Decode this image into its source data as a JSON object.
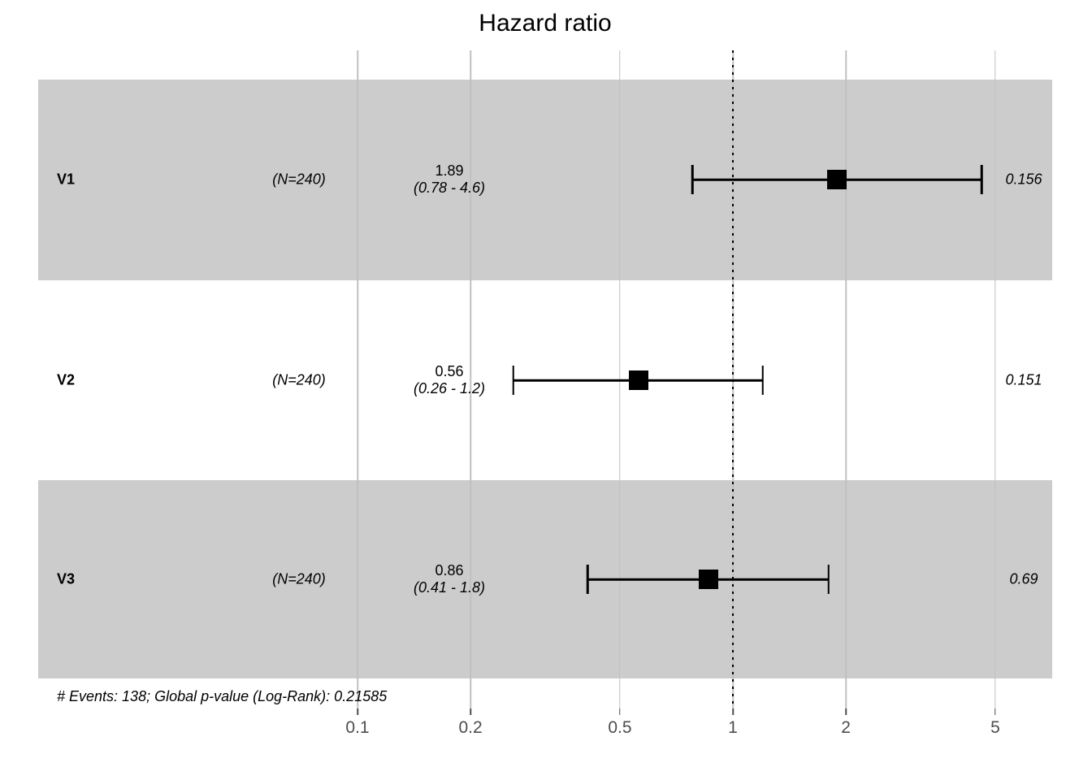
{
  "colors": {
    "band": "#CCCCCC",
    "grid": "#C0C0C0",
    "marker": "#000000",
    "axis_text": "#4D4D4D"
  },
  "chart_data": {
    "type": "forest",
    "title": "Hazard ratio",
    "x_scale": "log10",
    "xlim": [
      0.075,
      7
    ],
    "grid": true,
    "x_ticks": [
      {
        "value": 0.1,
        "label": "0.1"
      },
      {
        "value": 0.2,
        "label": "0.2"
      },
      {
        "value": 0.5,
        "label": "0.5"
      },
      {
        "value": 1,
        "label": "1"
      },
      {
        "value": 2,
        "label": "2"
      },
      {
        "value": 5,
        "label": "5"
      }
    ],
    "reference_value": 1,
    "rows": [
      {
        "label": "V1",
        "n": 240,
        "n_label": "(N=240)",
        "hr": 1.89,
        "hr_label": "1.89",
        "ci_low": 0.78,
        "ci_high": 4.6,
        "ci_label": "(0.78 - 4.6)",
        "p": 0.156,
        "p_label": "0.156",
        "shaded": true
      },
      {
        "label": "V2",
        "n": 240,
        "n_label": "(N=240)",
        "hr": 0.56,
        "hr_label": "0.56",
        "ci_low": 0.26,
        "ci_high": 1.2,
        "ci_label": "(0.26 - 1.2)",
        "p": 0.151,
        "p_label": "0.151",
        "shaded": false
      },
      {
        "label": "V3",
        "n": 240,
        "n_label": "(N=240)",
        "hr": 0.86,
        "hr_label": "0.86",
        "ci_low": 0.41,
        "ci_high": 1.8,
        "ci_label": "(0.41 - 1.8)",
        "p": 0.69,
        "p_label": "0.69",
        "shaded": true
      }
    ],
    "footnote": "# Events: 138; Global p-value (Log-Rank): 0.21585"
  }
}
